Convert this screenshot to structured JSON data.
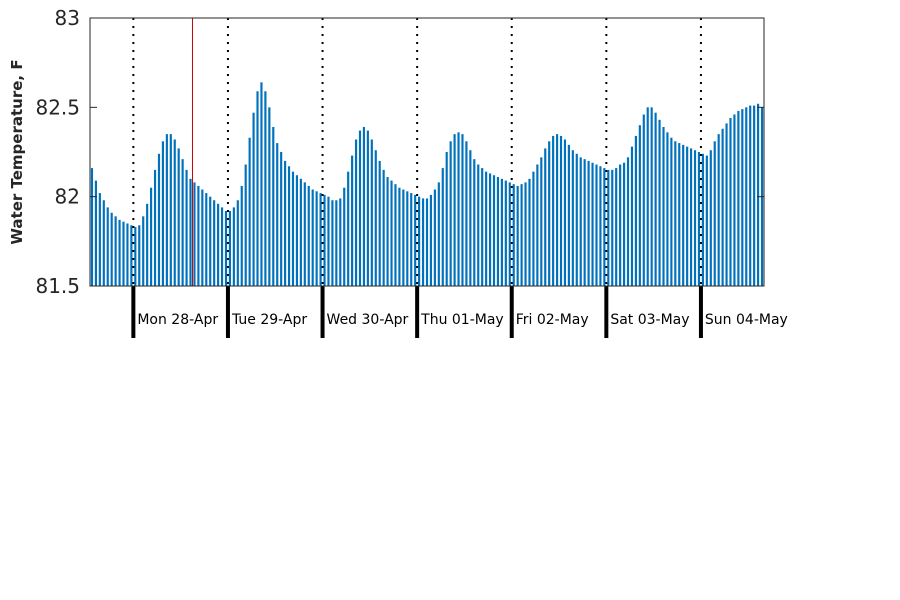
{
  "chart_data": {
    "type": "bar",
    "title": "",
    "xlabel": "",
    "ylabel": "Water Temperature, F",
    "ylim": [
      81.5,
      83
    ],
    "yticks": [
      81.5,
      82,
      82.5,
      83
    ],
    "ytick_labels": [
      "81.5",
      "82",
      "82.5",
      "83"
    ],
    "bar_color": "#0072BD",
    "day_labels": [
      "Mon 28-Apr",
      "Tue 29-Apr",
      "Wed 30-Apr",
      "Thu 01-May",
      "Fri 02-May",
      "Sat 03-May",
      "Sun 04-May"
    ],
    "hours_per_day": 24,
    "first_day_start_index": 11,
    "current_time_marker_index": 26,
    "marker_color": "#CC0000",
    "values": [
      82.16,
      82.09,
      82.02,
      81.98,
      81.94,
      81.91,
      81.89,
      81.87,
      81.86,
      81.85,
      81.84,
      81.83,
      81.84,
      81.89,
      81.96,
      82.05,
      82.15,
      82.24,
      82.31,
      82.35,
      82.35,
      82.32,
      82.27,
      82.21,
      82.15,
      82.1,
      82.08,
      82.06,
      82.04,
      82.02,
      82.0,
      81.98,
      81.96,
      81.94,
      81.92,
      81.92,
      81.94,
      81.98,
      82.06,
      82.18,
      82.33,
      82.47,
      82.59,
      82.64,
      82.59,
      82.5,
      82.39,
      82.3,
      82.25,
      82.2,
      82.17,
      82.14,
      82.12,
      82.1,
      82.08,
      82.06,
      82.04,
      82.03,
      82.02,
      82.01,
      82.0,
      81.98,
      81.98,
      81.99,
      82.05,
      82.14,
      82.23,
      82.32,
      82.37,
      82.39,
      82.37,
      82.32,
      82.26,
      82.2,
      82.15,
      82.11,
      82.09,
      82.07,
      82.05,
      82.04,
      82.03,
      82.02,
      82.01,
      82.0,
      81.99,
      81.99,
      82.01,
      82.04,
      82.08,
      82.16,
      82.25,
      82.31,
      82.35,
      82.36,
      82.35,
      82.31,
      82.26,
      82.21,
      82.18,
      82.16,
      82.14,
      82.13,
      82.12,
      82.11,
      82.1,
      82.09,
      82.08,
      82.07,
      82.06,
      82.07,
      82.08,
      82.1,
      82.14,
      82.18,
      82.22,
      82.27,
      82.31,
      82.34,
      82.35,
      82.34,
      82.32,
      82.29,
      82.26,
      82.24,
      82.22,
      82.21,
      82.2,
      82.19,
      82.18,
      82.17,
      82.16,
      82.15,
      82.15,
      82.16,
      82.18,
      82.19,
      82.22,
      82.28,
      82.34,
      82.4,
      82.46,
      82.5,
      82.5,
      82.47,
      82.43,
      82.39,
      82.36,
      82.33,
      82.31,
      82.3,
      82.29,
      82.28,
      82.27,
      82.26,
      82.25,
      82.24,
      82.23,
      82.26,
      82.31,
      82.35,
      82.38,
      82.41,
      82.44,
      82.46,
      82.48,
      82.49,
      82.5,
      82.51,
      82.51,
      82.52,
      82.5
    ]
  }
}
